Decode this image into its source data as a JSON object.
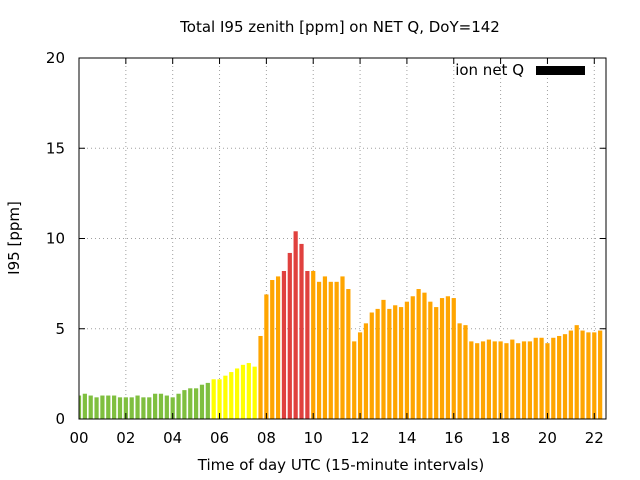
{
  "chart_data": {
    "type": "bar",
    "title": "Total I95 zenith [ppm] on NET Q, DoY=142",
    "xlabel": "Time of day UTC (15-minute intervals)",
    "ylabel": "I95 [ppm]",
    "ylim": [
      0,
      20
    ],
    "yticks": [
      "0",
      "5",
      "10",
      "15",
      "20"
    ],
    "xticks": [
      "00",
      "02",
      "04",
      "06",
      "08",
      "10",
      "12",
      "14",
      "16",
      "18",
      "20",
      "22"
    ],
    "xlim_hours": [
      0,
      22.75
    ],
    "interval_minutes": 15,
    "grid": true,
    "legend": {
      "label": "ion net Q",
      "placement": "top-right",
      "color": "#000000"
    },
    "colors": {
      "green": "#7fbf3f",
      "yellow": "#ffff00",
      "orange": "#ffa500",
      "red": "#e0413e"
    },
    "values": [
      1.3,
      1.4,
      1.3,
      1.2,
      1.3,
      1.3,
      1.3,
      1.2,
      1.2,
      1.2,
      1.3,
      1.2,
      1.2,
      1.4,
      1.4,
      1.3,
      1.2,
      1.4,
      1.6,
      1.7,
      1.7,
      1.9,
      2.0,
      2.2,
      2.2,
      2.4,
      2.6,
      2.8,
      3.0,
      3.1,
      2.9,
      4.6,
      6.9,
      7.7,
      7.9,
      8.2,
      9.2,
      10.4,
      9.7,
      8.2,
      8.2,
      7.6,
      7.9,
      7.6,
      7.6,
      7.9,
      7.2,
      4.3,
      4.8,
      5.3,
      5.9,
      6.1,
      6.6,
      6.1,
      6.3,
      6.2,
      6.5,
      6.8,
      7.2,
      7.0,
      6.5,
      6.2,
      6.7,
      6.8,
      6.7,
      5.3,
      5.2,
      4.3,
      4.2,
      4.3,
      4.4,
      4.3,
      4.3,
      4.2,
      4.4,
      4.2,
      4.3,
      4.3,
      4.5,
      4.5,
      4.2,
      4.5,
      4.6,
      4.7,
      4.9,
      5.2,
      4.9,
      4.8,
      4.8,
      4.9
    ],
    "bar_colors": [
      "green",
      "green",
      "green",
      "green",
      "green",
      "green",
      "green",
      "green",
      "green",
      "green",
      "green",
      "green",
      "green",
      "green",
      "green",
      "green",
      "green",
      "green",
      "green",
      "green",
      "green",
      "green",
      "green",
      "yellow",
      "yellow",
      "yellow",
      "yellow",
      "yellow",
      "yellow",
      "yellow",
      "yellow",
      "orange",
      "orange",
      "orange",
      "orange",
      "red",
      "red",
      "red",
      "red",
      "red",
      "orange",
      "orange",
      "orange",
      "orange",
      "orange",
      "orange",
      "orange",
      "orange",
      "orange",
      "orange",
      "orange",
      "orange",
      "orange",
      "orange",
      "orange",
      "orange",
      "orange",
      "orange",
      "orange",
      "orange",
      "orange",
      "orange",
      "orange",
      "orange",
      "orange",
      "orange",
      "orange",
      "orange",
      "orange",
      "orange",
      "orange",
      "orange",
      "orange",
      "orange",
      "orange",
      "orange",
      "orange",
      "orange",
      "orange",
      "orange",
      "orange",
      "orange",
      "orange",
      "orange",
      "orange",
      "orange",
      "orange",
      "orange",
      "orange",
      "orange"
    ]
  }
}
